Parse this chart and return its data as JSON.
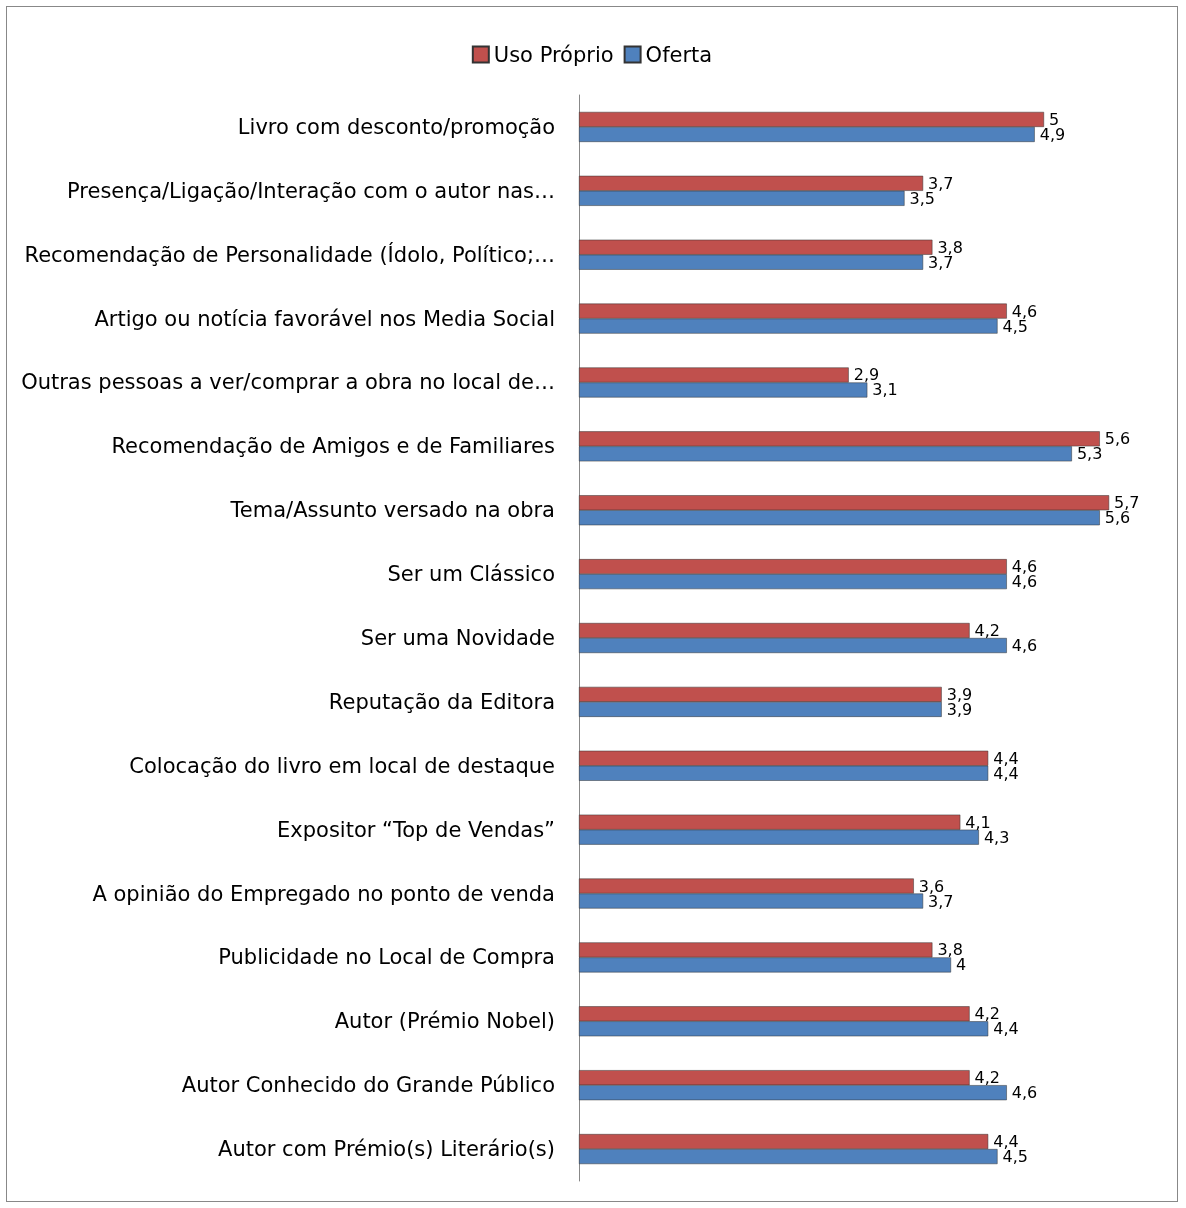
{
  "chart_data": {
    "type": "bar",
    "orientation": "horizontal",
    "legend": "top",
    "categories": [
      "Livro com desconto/promoção",
      "Presença/Ligação/Interação com o autor nas…",
      "Recomendação de Personalidade (Ídolo, Político;…",
      "Artigo ou notícia favorável nos Media Social",
      "Outras pessoas a ver/comprar a obra no local de…",
      "Recomendação de Amigos e de Familiares",
      "Tema/Assunto versado na obra",
      "Ser um Clássico",
      "Ser uma Novidade",
      "Reputação da Editora",
      "Colocação do livro em local de destaque",
      "Expositor “Top de Vendas”",
      "A opinião do Empregado no ponto de venda",
      "Publicidade no Local de Compra",
      "Autor (Prémio Nobel)",
      "Autor Conhecido do Grande Público",
      "Autor com Prémio(s) Literário(s)"
    ],
    "series": [
      {
        "name": "Uso Próprio",
        "color": "#c0504d",
        "values": [
          5,
          3.7,
          3.8,
          4.6,
          2.9,
          5.6,
          5.7,
          4.6,
          4.2,
          3.9,
          4.4,
          4.1,
          3.6,
          3.8,
          4.2,
          4.2,
          4.4
        ],
        "value_labels": [
          "5",
          "3,7",
          "3,8",
          "4,6",
          "2,9",
          "5,6",
          "5,7",
          "4,6",
          "4,2",
          "3,9",
          "4,4",
          "4,1",
          "3,6",
          "3,8",
          "4,2",
          "4,2",
          "4,4"
        ]
      },
      {
        "name": "Oferta",
        "color": "#4f81bd",
        "values": [
          4.9,
          3.5,
          3.7,
          4.5,
          3.1,
          5.3,
          5.6,
          4.6,
          4.6,
          3.9,
          4.4,
          4.3,
          3.7,
          4,
          4.4,
          4.6,
          4.5
        ],
        "value_labels": [
          "4,9",
          "3,5",
          "3,7",
          "4,5",
          "3,1",
          "5,3",
          "5,6",
          "4,6",
          "4,6",
          "3,9",
          "4,4",
          "4,3",
          "3,7",
          "4",
          "4,4",
          "4,6",
          "4,5"
        ]
      }
    ]
  }
}
